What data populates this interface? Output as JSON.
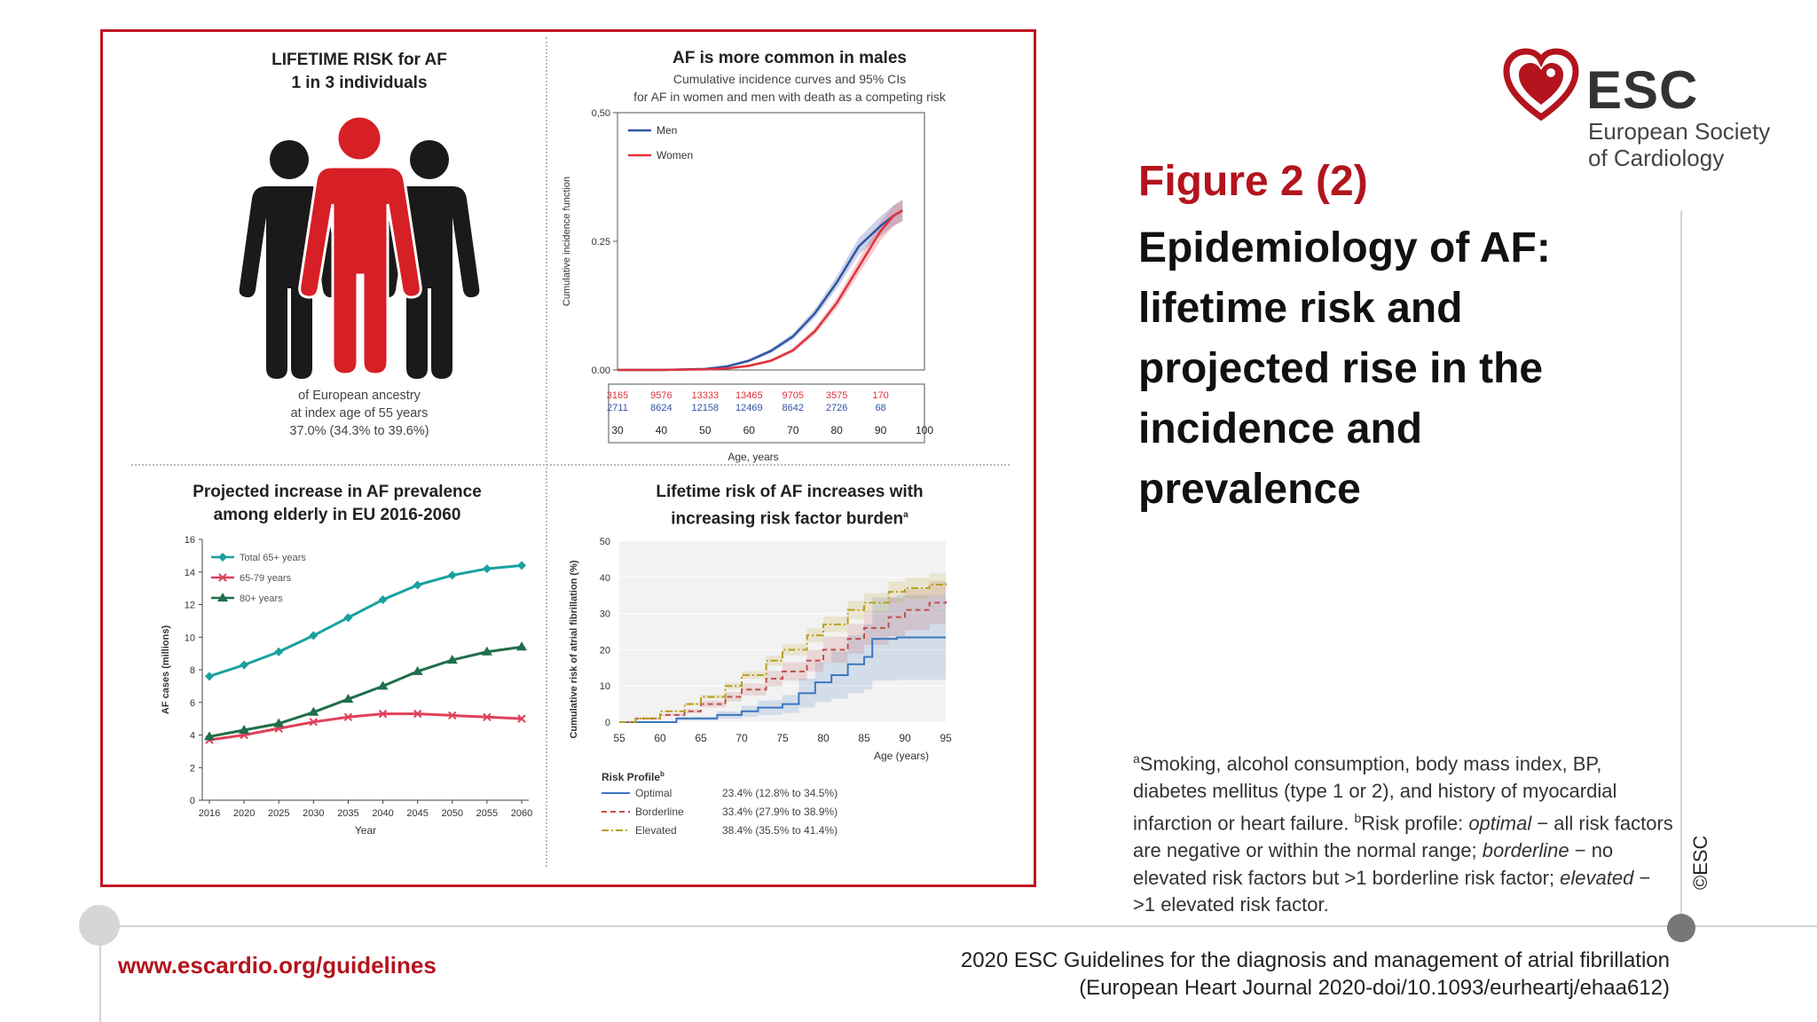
{
  "header": {
    "figure_title": "Figure 2 (2)",
    "figure_subtitle": "Epidemiology of AF: lifetime risk and projected rise in the incidence and prevalence"
  },
  "logo": {
    "name": "ESC",
    "full_name_line1": "European Society",
    "full_name_line2": "of Cardiology"
  },
  "panel1": {
    "title_line1": "LIFETIME RISK for AF",
    "title_line2": "1 in 3 individuals",
    "caption_line1": "of European ancestry",
    "caption_line2": "at index age of 55 years",
    "caption_line3": "37.0% (34.3% to 39.6%)",
    "colors": {
      "highlight": "#d71f26",
      "others": "#1a1a1a"
    }
  },
  "footnote": {
    "a_mark": "a",
    "a_text": "Smoking, alcohol consumption, body mass index, BP, diabetes mellitus (type 1 or 2), and history of myocardial infarction or heart failure. ",
    "b_mark": "b",
    "b_text": "Risk profile: ",
    "optimal": "optimal",
    "optimal_text": " − all risk factors are negative or within the normal range; ",
    "borderline": "borderline",
    "borderline_text": " − no elevated risk factors but >1 borderline risk factor; ",
    "elevated": "elevated",
    "elevated_text": " − >1 elevated risk factor."
  },
  "footer": {
    "url": "www.escardio.org/guidelines",
    "ref_line1": "2020 ESC Guidelines for the diagnosis and management of atrial fibrillation",
    "ref_line2": "(European Heart Journal 2020-doi/10.1093/eurheartj/ehaa612)",
    "copyright": "©ESC"
  },
  "colors": {
    "brand_red": "#b3141d",
    "men": "#2f55a5",
    "women": "#e0323c",
    "teal": "#1aa0a0",
    "pink": "#e0405a",
    "dark_green": "#1f6e4a",
    "optimal": "#3a78c0",
    "borderline": "#c0504d",
    "elevated": "#b8a020"
  },
  "chart_data": [
    {
      "type": "line",
      "title": "AF is more common in males",
      "subtitle_line1": "Cumulative incidence curves and 95% CIs",
      "subtitle_line2": "for AF in women and men with death as a competing risk",
      "xlabel": "Age, years",
      "ylabel": "Cumulative incidence function",
      "ylim": [
        0,
        0.5
      ],
      "xlim": [
        30,
        100
      ],
      "yticks": [
        "0.00",
        "0.25",
        "0,50"
      ],
      "xticks": [
        "30",
        "40",
        "50",
        "60",
        "70",
        "80",
        "90",
        "100"
      ],
      "legend": "top-left",
      "series": [
        {
          "name": "Men",
          "x": [
            30,
            40,
            50,
            55,
            60,
            65,
            70,
            75,
            80,
            85,
            90,
            93,
            95
          ],
          "values": [
            0.0,
            0.0,
            0.002,
            0.007,
            0.018,
            0.037,
            0.065,
            0.11,
            0.17,
            0.24,
            0.28,
            0.3,
            0.31
          ]
        },
        {
          "name": "Women",
          "x": [
            30,
            40,
            50,
            55,
            60,
            65,
            70,
            75,
            80,
            85,
            90,
            93,
            95
          ],
          "values": [
            0.0,
            0.0,
            0.001,
            0.003,
            0.008,
            0.018,
            0.038,
            0.075,
            0.13,
            0.2,
            0.27,
            0.3,
            0.31
          ]
        }
      ],
      "at_risk": {
        "women": [
          "3165",
          "9576",
          "13333",
          "13465",
          "9705",
          "3575",
          "170"
        ],
        "men": [
          "2711",
          "8624",
          "12158",
          "12469",
          "8642",
          "2726",
          "68"
        ]
      }
    },
    {
      "type": "line",
      "title_line1": "Projected increase in AF prevalence",
      "title_line2": "among elderly in EU 2016-2060",
      "xlabel": "Year",
      "ylabel": "AF cases (millions)",
      "ylim": [
        0,
        16
      ],
      "categories": [
        "2016",
        "2020",
        "2025",
        "2030",
        "2035",
        "2040",
        "2045",
        "2050",
        "2055",
        "2060"
      ],
      "yticks": [
        "0",
        "2",
        "4",
        "6",
        "8",
        "10",
        "12",
        "14",
        "16"
      ],
      "legend": "top-left",
      "series": [
        {
          "name": "Total 65+ years",
          "values": [
            7.6,
            8.3,
            9.1,
            10.1,
            11.2,
            12.3,
            13.2,
            13.8,
            14.2,
            14.4
          ]
        },
        {
          "name": "65-79 years",
          "values": [
            3.7,
            4.0,
            4.4,
            4.8,
            5.1,
            5.3,
            5.3,
            5.2,
            5.1,
            5.0
          ]
        },
        {
          "name": "80+ years",
          "values": [
            3.9,
            4.3,
            4.7,
            5.4,
            6.2,
            7.0,
            7.9,
            8.6,
            9.1,
            9.4
          ]
        }
      ]
    },
    {
      "type": "line",
      "title_line1": "Lifetime risk of AF increases with",
      "title_line2": "increasing risk factor burden",
      "title_mark": "a",
      "xlabel": "Age (years)",
      "ylabel": "Cumulative risk of atrial fibrillation (%)",
      "ylim": [
        0,
        50
      ],
      "xlim": [
        55,
        95
      ],
      "xticks": [
        "55",
        "60",
        "65",
        "70",
        "75",
        "80",
        "85",
        "90",
        "95"
      ],
      "yticks": [
        "0",
        "10",
        "20",
        "30",
        "40",
        "50"
      ],
      "legend_title": "Risk Profile",
      "legend_mark": "b",
      "series": [
        {
          "name": "Optimal",
          "ci": "23.4% (12.8% to 34.5%)",
          "x": [
            55,
            59,
            62,
            65,
            67,
            70,
            72,
            75,
            77,
            79,
            81,
            83,
            85,
            86,
            89,
            95
          ],
          "values": [
            0,
            0,
            1,
            1,
            2,
            3,
            4,
            5,
            8,
            11,
            13,
            16,
            18,
            23,
            23.4,
            23.4
          ]
        },
        {
          "name": "Borderline",
          "ci": "33.4% (27.9% to 38.9%)",
          "x": [
            55,
            57,
            60,
            63,
            65,
            68,
            70,
            73,
            75,
            78,
            80,
            83,
            85,
            88,
            90,
            93,
            95
          ],
          "values": [
            0,
            1,
            2,
            3,
            5,
            7,
            9,
            12,
            14,
            17,
            20,
            23,
            26,
            29,
            31,
            33,
            33.4
          ]
        },
        {
          "name": "Elevated",
          "ci": "38.4% (35.5% to 41.4%)",
          "x": [
            55,
            57,
            60,
            63,
            65,
            68,
            70,
            73,
            75,
            78,
            80,
            83,
            85,
            88,
            90,
            93,
            95
          ],
          "values": [
            0,
            1,
            3,
            5,
            7,
            10,
            13,
            17,
            20,
            24,
            27,
            31,
            33,
            36,
            37,
            38,
            38.4
          ]
        }
      ]
    }
  ]
}
